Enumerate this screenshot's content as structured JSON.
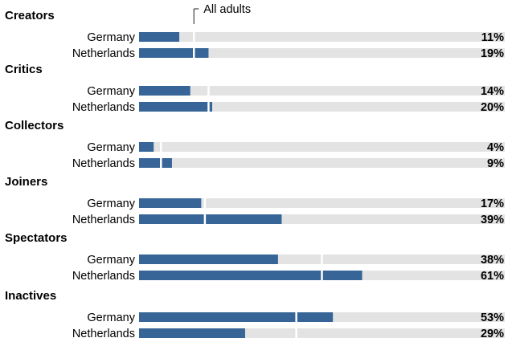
{
  "chart_data": {
    "type": "bar",
    "orientation": "horizontal",
    "title": "",
    "xlim": [
      0,
      100
    ],
    "grid": false,
    "annotation": "All adults",
    "colors": {
      "bar": "#376597",
      "track": "#e3e3e3",
      "marker": "#ffffff",
      "leader": "#444444"
    },
    "groups": [
      {
        "name": "Creators",
        "rows": [
          {
            "label": "Germany",
            "value": 11,
            "value_label": "11%",
            "all_adults": 15
          },
          {
            "label": "Netherlands",
            "value": 19,
            "value_label": "19%",
            "all_adults": 15
          }
        ]
      },
      {
        "name": "Critics",
        "rows": [
          {
            "label": "Germany",
            "value": 14,
            "value_label": "14%",
            "all_adults": 19
          },
          {
            "label": "Netherlands",
            "value": 20,
            "value_label": "20%",
            "all_adults": 19
          }
        ]
      },
      {
        "name": "Collectors",
        "rows": [
          {
            "label": "Germany",
            "value": 4,
            "value_label": "4%",
            "all_adults": 6
          },
          {
            "label": "Netherlands",
            "value": 9,
            "value_label": "9%",
            "all_adults": 6
          }
        ]
      },
      {
        "name": "Joiners",
        "rows": [
          {
            "label": "Germany",
            "value": 17,
            "value_label": "17%",
            "all_adults": 18
          },
          {
            "label": "Netherlands",
            "value": 39,
            "value_label": "39%",
            "all_adults": 18
          }
        ]
      },
      {
        "name": "Spectators",
        "rows": [
          {
            "label": "Germany",
            "value": 38,
            "value_label": "38%",
            "all_adults": 50
          },
          {
            "label": "Netherlands",
            "value": 61,
            "value_label": "61%",
            "all_adults": 50
          }
        ]
      },
      {
        "name": "Inactives",
        "rows": [
          {
            "label": "Germany",
            "value": 53,
            "value_label": "53%",
            "all_adults": 43
          },
          {
            "label": "Netherlands",
            "value": 29,
            "value_label": "29%",
            "all_adults": 43
          }
        ]
      }
    ]
  }
}
